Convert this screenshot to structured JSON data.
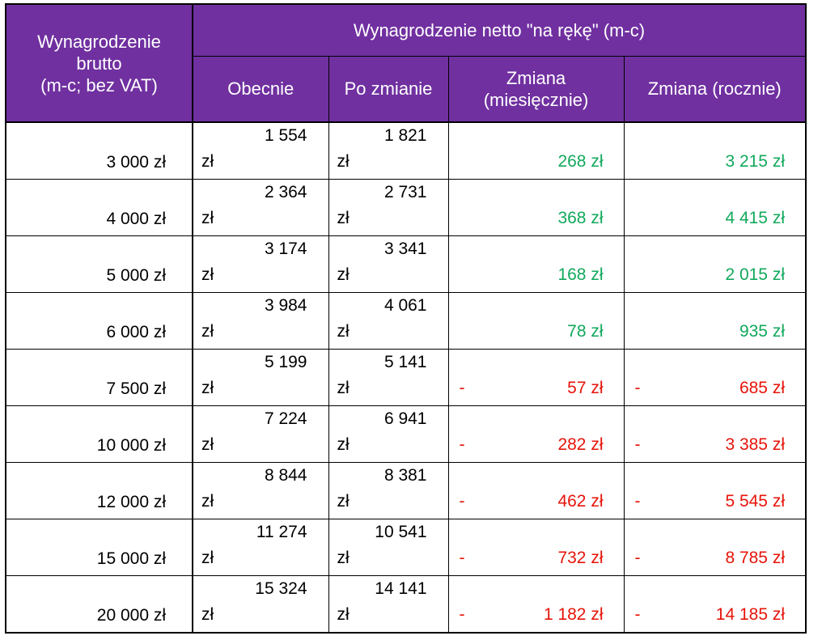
{
  "header": {
    "brutto_label": "Wynagrodzenie\nbrutto\n(m-c; bez VAT)",
    "netto_title": "Wynagrodzenie netto \"na rękę\" (m-c)",
    "subcolumns": {
      "obecnie": "Obecnie",
      "po_zmianie": "Po zmianie",
      "zmiana_miesiecznie": "Zmiana\n(miesięcznie)",
      "zmiana_rocznie": "Zmiana (rocznie)"
    }
  },
  "currency_suffix": "zł",
  "minus_sign": "-",
  "colors": {
    "header_bg": "#7030A0",
    "header_text": "#FFFFFF",
    "positive_value": "#12A85C",
    "negative_value": "#E6140A",
    "body_text": "#000000",
    "border": "#000000"
  },
  "rows": [
    {
      "brutto": "3 000 zł",
      "obecnie": "1 554",
      "po_zmianie": "1 821",
      "zmiana_miesiecznie": "268 zł",
      "zmiana_rocznie": "3 215 zł",
      "negative": false
    },
    {
      "brutto": "4 000 zł",
      "obecnie": "2 364",
      "po_zmianie": "2 731",
      "zmiana_miesiecznie": "368 zł",
      "zmiana_rocznie": "4 415 zł",
      "negative": false
    },
    {
      "brutto": "5 000 zł",
      "obecnie": "3 174",
      "po_zmianie": "3 341",
      "zmiana_miesiecznie": "168 zł",
      "zmiana_rocznie": "2 015 zł",
      "negative": false
    },
    {
      "brutto": "6 000 zł",
      "obecnie": "3 984",
      "po_zmianie": "4 061",
      "zmiana_miesiecznie": "78 zł",
      "zmiana_rocznie": "935 zł",
      "negative": false
    },
    {
      "brutto": "7 500 zł",
      "obecnie": "5 199",
      "po_zmianie": "5 141",
      "zmiana_miesiecznie": "57 zł",
      "zmiana_rocznie": "685 zł",
      "negative": true
    },
    {
      "brutto": "10 000 zł",
      "obecnie": "7 224",
      "po_zmianie": "6 941",
      "zmiana_miesiecznie": "282 zł",
      "zmiana_rocznie": "3 385 zł",
      "negative": true
    },
    {
      "brutto": "12 000 zł",
      "obecnie": "8 844",
      "po_zmianie": "8 381",
      "zmiana_miesiecznie": "462 zł",
      "zmiana_rocznie": "5 545 zł",
      "negative": true
    },
    {
      "brutto": "15 000 zł",
      "obecnie": "11 274",
      "po_zmianie": "10 541",
      "zmiana_miesiecznie": "732 zł",
      "zmiana_rocznie": "8 785 zł",
      "negative": true
    },
    {
      "brutto": "20 000 zł",
      "obecnie": "15 324",
      "po_zmianie": "14 141",
      "zmiana_miesiecznie": "1 182 zł",
      "zmiana_rocznie": "14 185 zł",
      "negative": true
    }
  ],
  "chart_data": {
    "type": "table",
    "title": "Wynagrodzenie netto \"na rękę\" (m-c)",
    "columns": [
      "Wynagrodzenie brutto (m-c; bez VAT)",
      "Obecnie",
      "Po zmianie",
      "Zmiana (miesięcznie)",
      "Zmiana (rocznie)"
    ],
    "unit": "zł",
    "rows": [
      [
        3000,
        1554,
        1821,
        268,
        3215
      ],
      [
        4000,
        2364,
        2731,
        368,
        4415
      ],
      [
        5000,
        3174,
        3341,
        168,
        2015
      ],
      [
        6000,
        3984,
        4061,
        78,
        935
      ],
      [
        7500,
        5199,
        5141,
        -57,
        -685
      ],
      [
        10000,
        7224,
        6941,
        -282,
        -3385
      ],
      [
        12000,
        8844,
        8381,
        -462,
        -5545
      ],
      [
        15000,
        11274,
        10541,
        -732,
        -8785
      ],
      [
        20000,
        15324,
        14141,
        -1182,
        -14185
      ]
    ]
  }
}
